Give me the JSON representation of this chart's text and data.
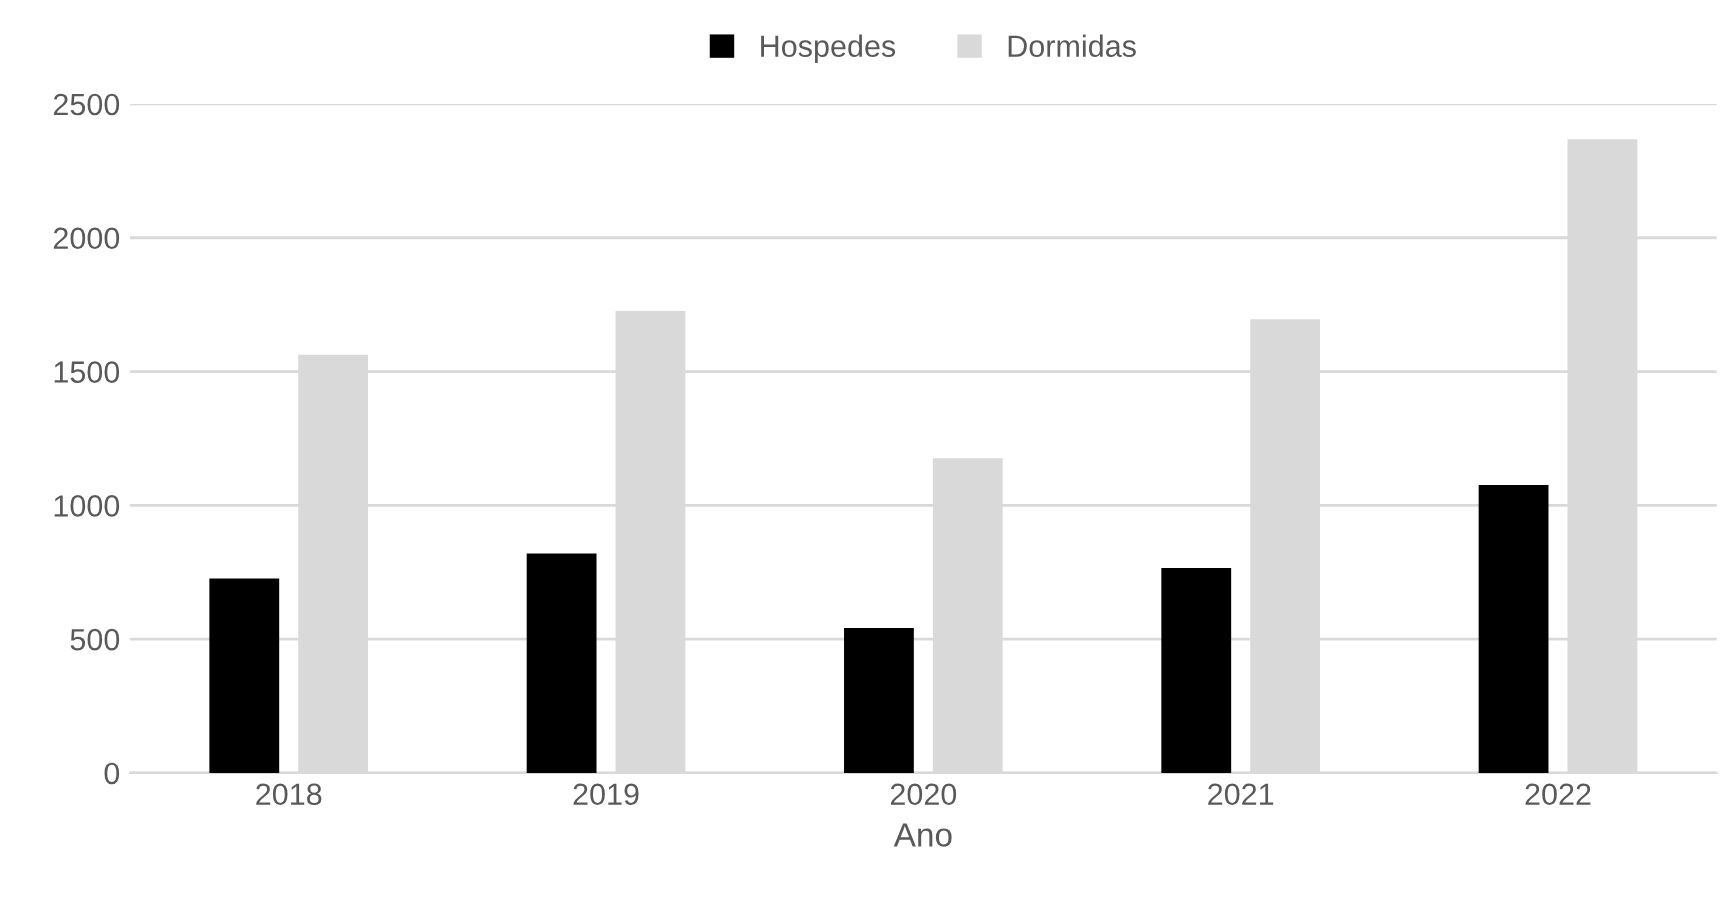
{
  "chart_data": {
    "type": "bar",
    "xlabel": "Ano",
    "categories": [
      "2018",
      "2019",
      "2020",
      "2021",
      "2022"
    ],
    "series": [
      {
        "name": "Hospedes",
        "color": "#000000",
        "values": [
          727,
          820,
          542,
          766,
          1076
        ]
      },
      {
        "name": "Dormidas",
        "color": "#d9d9d9",
        "values": [
          1563,
          1726,
          1176,
          1695,
          2368
        ]
      }
    ],
    "ylim": [
      0,
      2500
    ],
    "yticks": [
      0,
      500,
      1000,
      1500,
      2000,
      2500
    ],
    "grid": "y",
    "legend": "top"
  }
}
